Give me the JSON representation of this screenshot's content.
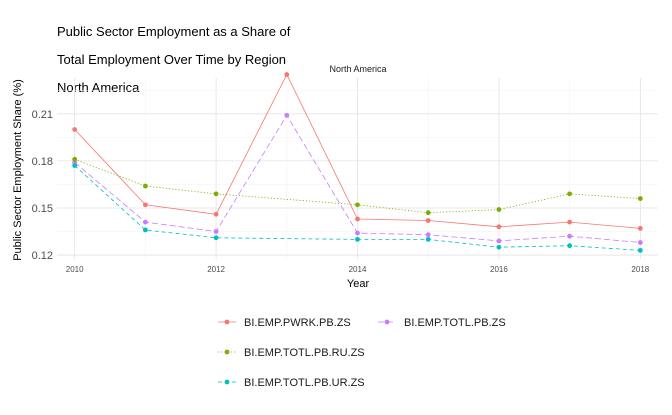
{
  "chart_data": {
    "type": "line",
    "title_lines": [
      "Public Sector Employment as a Share of",
      "Total Employment Over Time by Region",
      "North America"
    ],
    "facet_label": "North America",
    "xlabel": "Year",
    "ylabel": "Public Sector Employment Share (%)",
    "x": [
      2010,
      2011,
      2012,
      2013,
      2014,
      2015,
      2016,
      2017,
      2018
    ],
    "x_ticks": [
      2010,
      2012,
      2014,
      2016,
      2018
    ],
    "y_ticks": [
      0.12,
      0.15,
      0.18,
      0.21
    ],
    "y_tick_labels": [
      "0.12",
      "0.15",
      "0.18",
      "0.21"
    ],
    "xlim": [
      2009.75,
      2018.25
    ],
    "ylim": [
      0.1175,
      0.2328
    ],
    "grid": true,
    "legend_position": "bottom",
    "series": [
      {
        "name": "BI.EMP.PWRK.PB.ZS",
        "color": "#F8766D",
        "dash": "solid",
        "values": [
          0.2,
          0.152,
          0.146,
          0.235,
          0.143,
          0.142,
          0.138,
          0.141,
          0.137
        ]
      },
      {
        "name": "BI.EMP.TOTL.PB.ZS",
        "color": "#C77CFF",
        "dash": "longdash",
        "values": [
          0.179,
          0.141,
          0.135,
          0.209,
          0.134,
          0.133,
          0.129,
          0.132,
          0.128
        ]
      },
      {
        "name": "BI.EMP.TOTL.PB.RU.ZS",
        "color": "#7CAE00",
        "dash": "dotted",
        "values": [
          0.181,
          0.164,
          0.159,
          null,
          0.152,
          0.147,
          0.149,
          0.159,
          0.156
        ]
      },
      {
        "name": "BI.EMP.TOTL.PB.UR.ZS",
        "color": "#00BFC4",
        "dash": "dashed",
        "values": [
          0.177,
          0.136,
          0.131,
          null,
          0.13,
          0.13,
          0.125,
          0.126,
          0.123
        ]
      }
    ]
  }
}
